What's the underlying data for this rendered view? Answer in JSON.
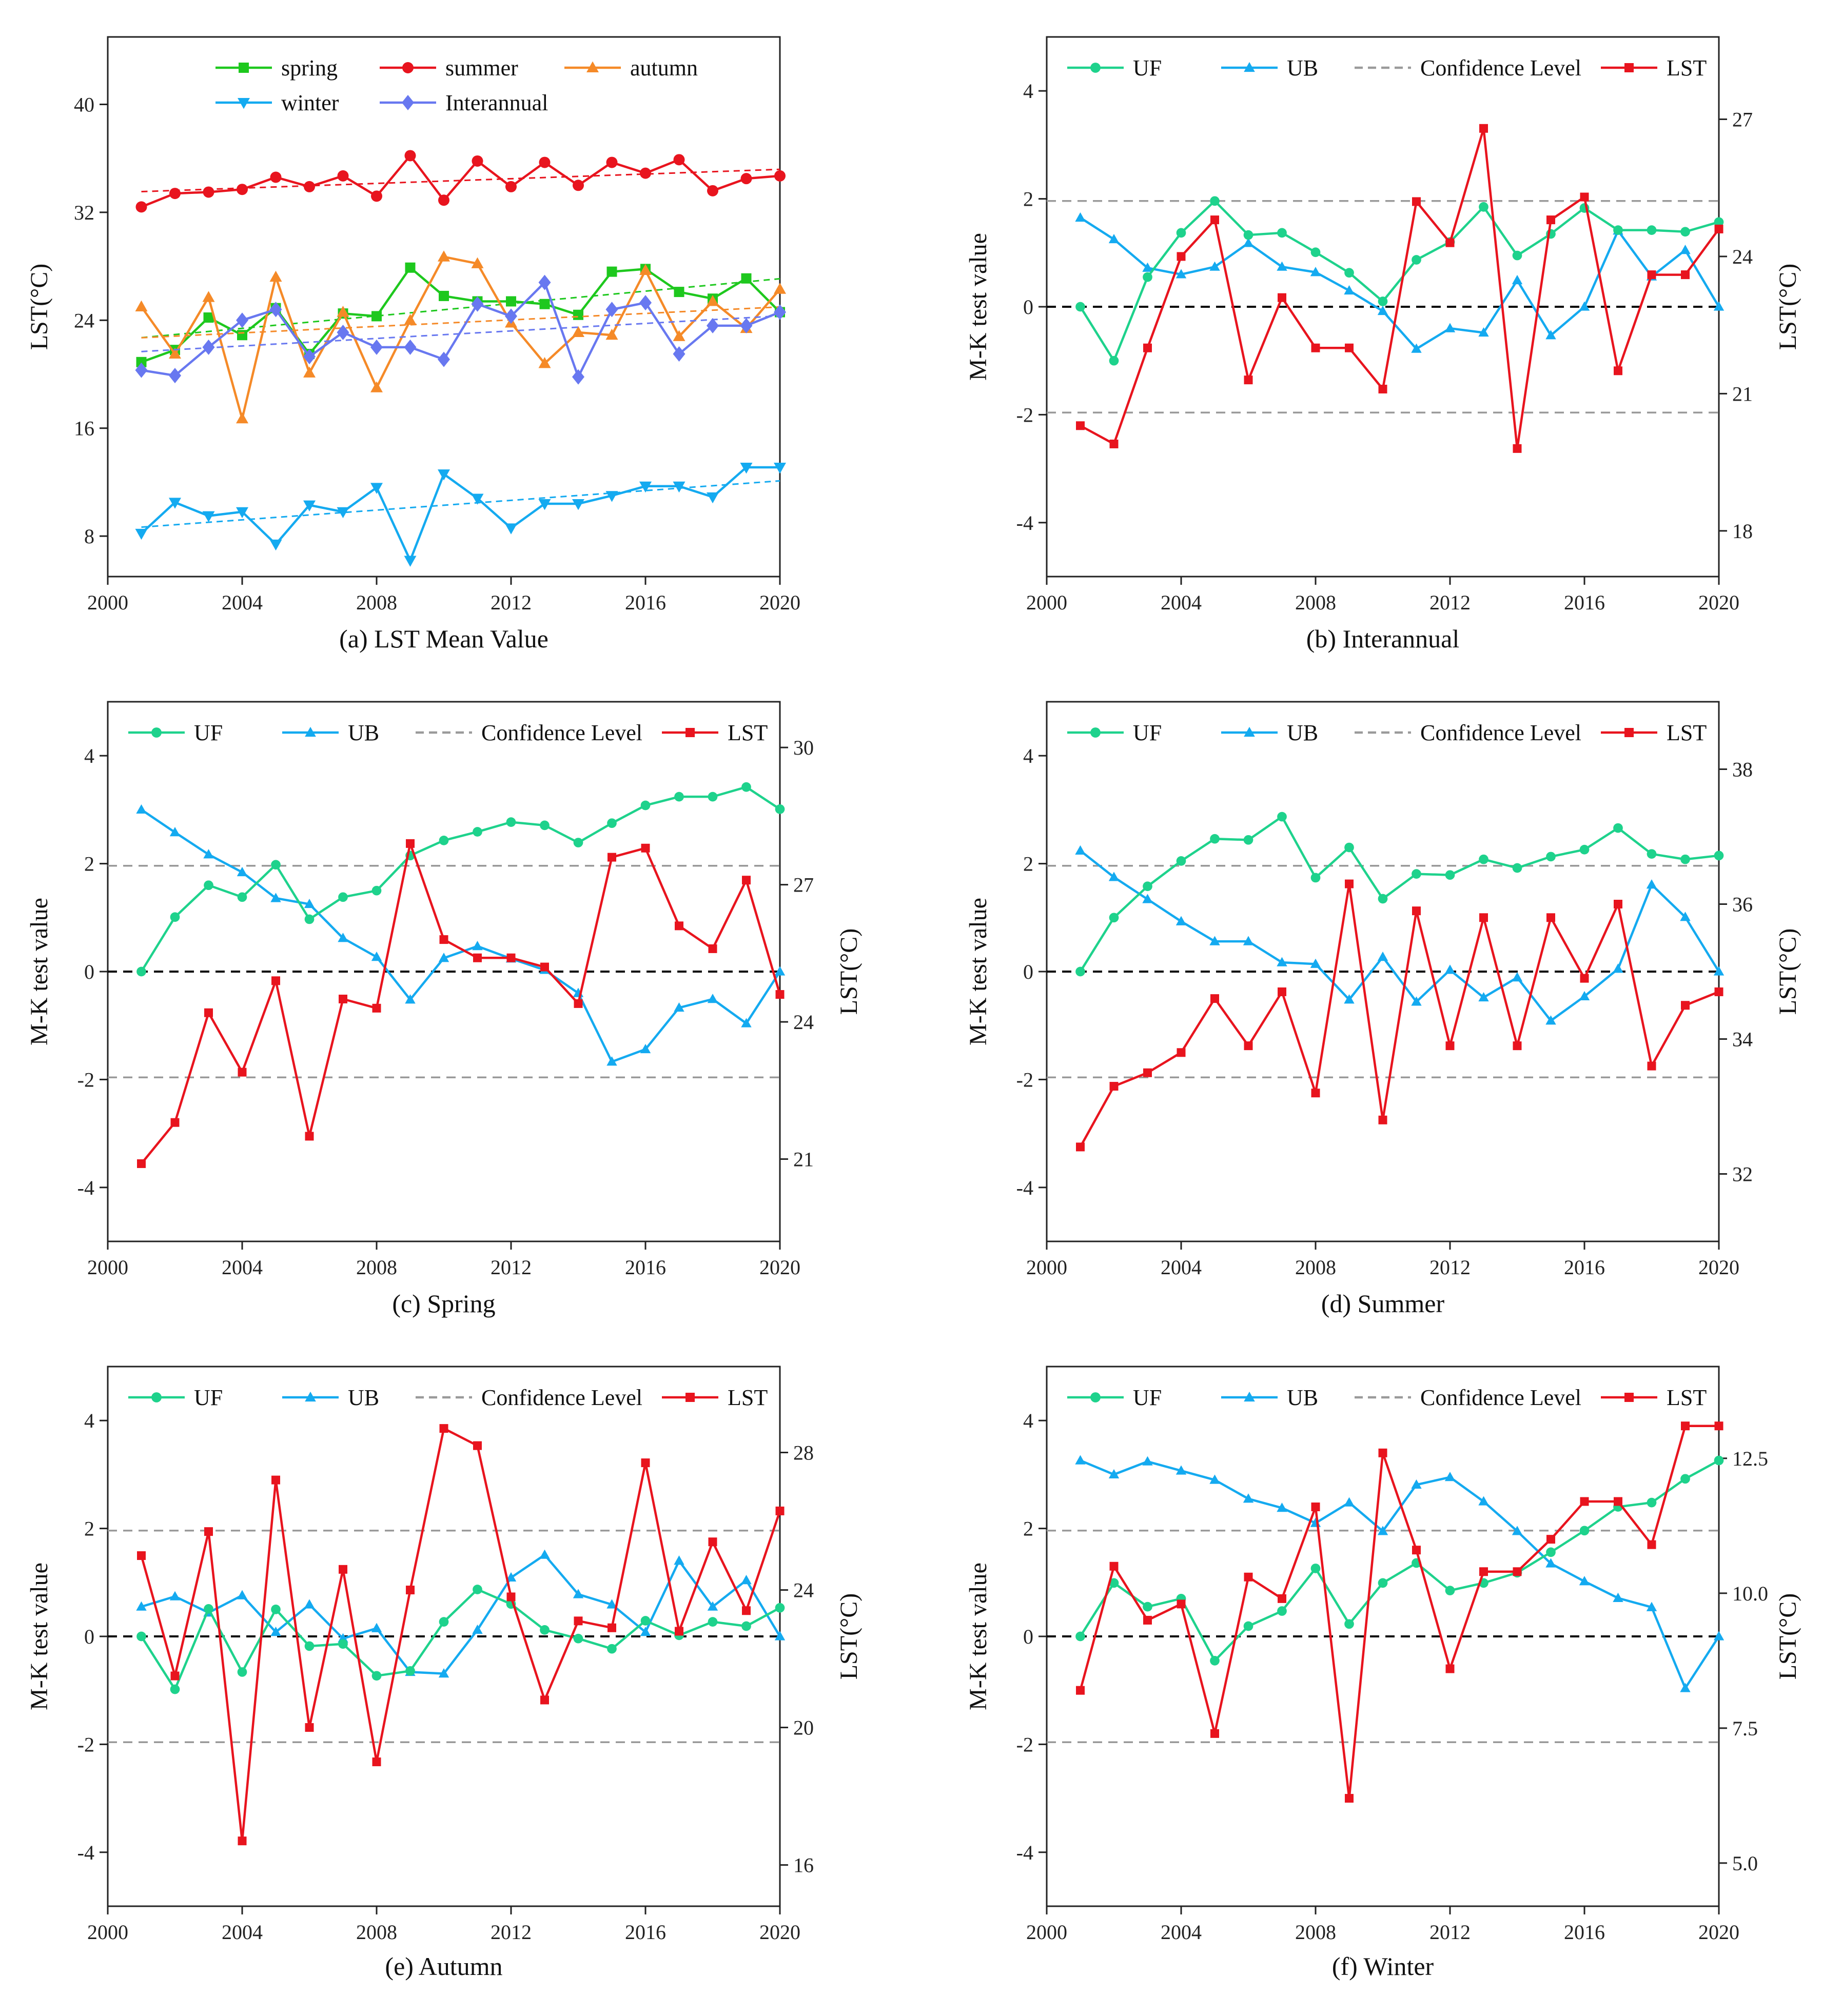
{
  "chart_data": [
    {
      "type": "line",
      "caption": "(a) LST Mean Value",
      "xlim": [
        2000,
        2020
      ],
      "xticks": [
        2000,
        2004,
        2008,
        2012,
        2016,
        2020
      ],
      "ylim": [
        5,
        45
      ],
      "yticks": [
        8,
        16,
        24,
        32,
        40
      ],
      "ylabel": "LST(°C)",
      "x": [
        2001,
        2002,
        2003,
        2004,
        2005,
        2006,
        2007,
        2008,
        2009,
        2010,
        2011,
        2012,
        2013,
        2014,
        2015,
        2016,
        2017,
        2018,
        2019,
        2020
      ],
      "legend_rows": [
        [
          "spring",
          "summer",
          "autumn"
        ],
        [
          "winter",
          "Interannual"
        ]
      ],
      "series": [
        {
          "name": "spring",
          "color": "#1ec81e",
          "marker": "square",
          "values": [
            20.9,
            21.8,
            24.2,
            22.9,
            24.9,
            21.5,
            24.5,
            24.3,
            27.9,
            25.8,
            25.4,
            25.4,
            25.2,
            24.4,
            27.6,
            27.8,
            26.1,
            25.6,
            27.1,
            24.6
          ]
        },
        {
          "name": "summer",
          "color": "#e8141e",
          "marker": "circle",
          "values": [
            32.4,
            33.4,
            33.5,
            33.7,
            34.6,
            33.9,
            34.7,
            33.2,
            36.2,
            32.9,
            35.8,
            33.9,
            35.7,
            34.0,
            35.7,
            34.9,
            35.9,
            33.6,
            34.5,
            34.7
          ]
        },
        {
          "name": "autumn",
          "color": "#f58a28",
          "marker": "triangle-up",
          "values": [
            25.0,
            21.5,
            25.7,
            16.7,
            27.2,
            20.1,
            24.6,
            19.0,
            24.0,
            28.7,
            28.2,
            23.8,
            20.8,
            23.1,
            22.9,
            27.7,
            22.8,
            25.4,
            23.4,
            26.3
          ]
        },
        {
          "name": "winter",
          "color": "#14aaf0",
          "marker": "triangle-down",
          "values": [
            8.2,
            10.5,
            9.5,
            9.8,
            7.4,
            10.3,
            9.8,
            11.6,
            6.2,
            12.6,
            10.8,
            8.6,
            10.4,
            10.4,
            11.0,
            11.7,
            11.7,
            10.9,
            13.1,
            13.1
          ]
        },
        {
          "name": "Interannual",
          "color": "#6878f0",
          "marker": "diamond",
          "values": [
            20.3,
            19.9,
            22.0,
            24.0,
            24.8,
            21.3,
            23.1,
            22.0,
            22.0,
            21.1,
            25.2,
            24.3,
            26.8,
            19.8,
            24.8,
            25.3,
            21.5,
            23.6,
            23.6,
            24.6
          ]
        }
      ],
      "trendlines": true
    },
    {
      "type": "line",
      "caption": "(b) Interannual",
      "xlim": [
        2000,
        2020
      ],
      "xticks": [
        2000,
        2004,
        2008,
        2012,
        2016,
        2020
      ],
      "ylim": [
        -5,
        5
      ],
      "yticks": [
        -4,
        -2,
        0,
        2,
        4
      ],
      "ylabel": "M-K test value",
      "y2lim": [
        17.0,
        28.8
      ],
      "y2ticks": [
        "18",
        "21",
        "24",
        "27"
      ],
      "y2ticks_values": [
        18,
        21,
        24,
        27
      ],
      "y2label": "LST(°C)",
      "confidence": [
        -1.96,
        1.96
      ],
      "x": [
        2001,
        2002,
        2003,
        2004,
        2005,
        2006,
        2007,
        2008,
        2009,
        2010,
        2011,
        2012,
        2013,
        2014,
        2015,
        2016,
        2017,
        2018,
        2019,
        2020
      ],
      "UF": [
        0,
        -1.0,
        0.55,
        1.37,
        1.96,
        1.33,
        1.37,
        1.01,
        0.63,
        0.1,
        0.87,
        1.2,
        1.85,
        0.95,
        1.35,
        1.83,
        1.42,
        1.42,
        1.39,
        1.57
      ],
      "UB": [
        1.65,
        1.25,
        0.72,
        0.6,
        0.74,
        1.18,
        0.74,
        0.64,
        0.3,
        -0.08,
        -0.78,
        -0.4,
        -0.48,
        0.49,
        -0.53,
        0.0,
        1.41,
        0.56,
        1.05,
        0.0
      ],
      "LST": [
        20.3,
        19.9,
        22.0,
        24.0,
        24.8,
        21.3,
        23.1,
        22.0,
        22.0,
        21.1,
        25.2,
        24.3,
        26.8,
        19.8,
        24.8,
        25.3,
        21.5,
        23.6,
        23.6,
        24.6
      ],
      "legend": [
        "UF",
        "UB",
        "Confidence Level",
        "LST"
      ]
    },
    {
      "type": "line",
      "caption": "(c) Spring",
      "xlim": [
        2000,
        2020
      ],
      "xticks": [
        2000,
        2004,
        2008,
        2012,
        2016,
        2020
      ],
      "ylim": [
        -5,
        5
      ],
      "yticks": [
        -4,
        -2,
        0,
        2,
        4
      ],
      "ylabel": "M-K test value",
      "y2lim": [
        19.2,
        31.0
      ],
      "y2ticks": [
        "21",
        "24",
        "27",
        "30"
      ],
      "y2ticks_values": [
        21,
        24,
        27,
        30
      ],
      "y2label": "LST(°C)",
      "confidence": [
        -1.96,
        1.96
      ],
      "x": [
        2001,
        2002,
        2003,
        2004,
        2005,
        2006,
        2007,
        2008,
        2009,
        2010,
        2011,
        2012,
        2013,
        2014,
        2015,
        2016,
        2017,
        2018,
        2019,
        2020
      ],
      "UF": [
        0,
        1.01,
        1.6,
        1.38,
        1.98,
        0.97,
        1.38,
        1.5,
        2.15,
        2.43,
        2.59,
        2.77,
        2.71,
        2.39,
        2.75,
        3.08,
        3.24,
        3.24,
        3.42,
        3.01
      ],
      "UB": [
        3.0,
        2.58,
        2.17,
        1.84,
        1.36,
        1.25,
        0.62,
        0.27,
        -0.52,
        0.25,
        0.47,
        0.24,
        0.03,
        -0.4,
        -1.67,
        -1.44,
        -0.67,
        -0.51,
        -0.96,
        0.0
      ],
      "LST": [
        20.9,
        21.8,
        24.2,
        22.9,
        24.9,
        21.5,
        24.5,
        24.3,
        27.9,
        25.8,
        25.4,
        25.4,
        25.2,
        24.4,
        27.6,
        27.8,
        26.1,
        25.6,
        27.1,
        24.6
      ],
      "legend": [
        "UF",
        "UB",
        "Confidence Level",
        "LST"
      ]
    },
    {
      "type": "line",
      "caption": "(d) Summer",
      "xlim": [
        2000,
        2020
      ],
      "xticks": [
        2000,
        2004,
        2008,
        2012,
        2016,
        2020
      ],
      "ylim": [
        -5,
        5
      ],
      "yticks": [
        -4,
        -2,
        0,
        2,
        4
      ],
      "ylabel": "M-K test value",
      "y2lim": [
        31.0,
        39.0
      ],
      "y2ticks": [
        "32",
        "34",
        "36",
        "38"
      ],
      "y2ticks_values": [
        32,
        34,
        36,
        38
      ],
      "y2label": "LST(°C)",
      "confidence": [
        -1.96,
        1.96
      ],
      "x": [
        2001,
        2002,
        2003,
        2004,
        2005,
        2006,
        2007,
        2008,
        2009,
        2010,
        2011,
        2012,
        2013,
        2014,
        2015,
        2016,
        2017,
        2018,
        2019,
        2020
      ],
      "UF": [
        0,
        1.0,
        1.58,
        2.05,
        2.46,
        2.44,
        2.87,
        1.74,
        2.3,
        1.35,
        1.81,
        1.79,
        2.08,
        1.92,
        2.13,
        2.26,
        2.66,
        2.18,
        2.08,
        2.15
      ],
      "UB": [
        2.24,
        1.75,
        1.34,
        0.93,
        0.56,
        0.56,
        0.17,
        0.14,
        -0.52,
        0.27,
        -0.56,
        0.03,
        -0.48,
        -0.11,
        -0.91,
        -0.46,
        0.05,
        1.61,
        1.01,
        0.0
      ],
      "LST": [
        32.4,
        33.3,
        33.5,
        33.8,
        34.6,
        33.9,
        34.7,
        33.2,
        36.3,
        32.8,
        35.9,
        33.9,
        35.8,
        33.9,
        35.8,
        34.9,
        36.0,
        33.6,
        34.5,
        34.7
      ],
      "legend": [
        "UF",
        "UB",
        "Confidence Level",
        "LST"
      ]
    },
    {
      "type": "line",
      "caption": "(e) Autumn",
      "xlim": [
        2000,
        2020
      ],
      "xticks": [
        2000,
        2004,
        2008,
        2012,
        2016,
        2020
      ],
      "ylim": [
        -5,
        5
      ],
      "yticks": [
        -4,
        -2,
        0,
        2,
        4
      ],
      "ylabel": "M-K test value",
      "y2lim": [
        14.8,
        30.5
      ],
      "y2ticks": [
        "16",
        "20",
        "24",
        "28"
      ],
      "y2ticks_values": [
        16,
        20,
        24,
        28
      ],
      "y2label": "LST(°C)",
      "confidence": [
        -1.96,
        1.96
      ],
      "x": [
        2001,
        2002,
        2003,
        2004,
        2005,
        2006,
        2007,
        2008,
        2009,
        2010,
        2011,
        2012,
        2013,
        2014,
        2015,
        2016,
        2017,
        2018,
        2019,
        2020
      ],
      "UF": [
        0,
        -0.98,
        0.51,
        -0.66,
        0.5,
        -0.18,
        -0.14,
        -0.73,
        -0.64,
        0.27,
        0.87,
        0.6,
        0.12,
        -0.04,
        -0.23,
        0.29,
        0.02,
        0.27,
        0.19,
        0.53
      ],
      "UB": [
        0.55,
        0.74,
        0.44,
        0.76,
        0.08,
        0.59,
        -0.04,
        0.15,
        -0.66,
        -0.69,
        0.12,
        1.09,
        1.51,
        0.78,
        0.59,
        0.08,
        1.4,
        0.55,
        1.04,
        0.0
      ],
      "LST": [
        25.0,
        21.5,
        25.7,
        16.7,
        27.2,
        20.0,
        24.6,
        19.0,
        24.0,
        28.7,
        28.2,
        23.8,
        20.8,
        23.1,
        22.9,
        27.7,
        22.8,
        25.4,
        23.4,
        26.3
      ],
      "legend": [
        "UF",
        "UB",
        "Confidence Level",
        "LST"
      ]
    },
    {
      "type": "line",
      "caption": "(f) Winter",
      "xlim": [
        2000,
        2020
      ],
      "xticks": [
        2000,
        2004,
        2008,
        2012,
        2016,
        2020
      ],
      "ylim": [
        -5,
        5
      ],
      "yticks": [
        -4,
        -2,
        0,
        2,
        4
      ],
      "ylabel": "M-K test value",
      "y2lim": [
        4.2,
        14.2
      ],
      "y2ticks": [
        "5.0",
        "7.5",
        "10.0",
        "12.5"
      ],
      "y2ticks_values": [
        5.0,
        7.5,
        10.0,
        12.5
      ],
      "y2label": "LST(°C)",
      "confidence": [
        -1.96,
        1.96
      ],
      "x": [
        2001,
        2002,
        2003,
        2004,
        2005,
        2006,
        2007,
        2008,
        2009,
        2010,
        2011,
        2012,
        2013,
        2014,
        2015,
        2016,
        2017,
        2018,
        2019,
        2020
      ],
      "UF": [
        0,
        0.99,
        0.55,
        0.7,
        -0.45,
        0.19,
        0.47,
        1.26,
        0.23,
        0.99,
        1.36,
        0.85,
        0.99,
        1.18,
        1.56,
        1.96,
        2.4,
        2.48,
        2.92,
        3.26
      ],
      "UB": [
        3.26,
        3.0,
        3.24,
        3.07,
        2.9,
        2.55,
        2.38,
        2.1,
        2.48,
        1.95,
        2.81,
        2.95,
        2.5,
        1.95,
        1.35,
        1.02,
        0.71,
        0.54,
        -0.96,
        0.0
      ],
      "LST": [
        8.2,
        10.5,
        9.5,
        9.8,
        7.4,
        10.3,
        9.9,
        11.6,
        6.2,
        12.6,
        10.8,
        8.6,
        10.4,
        10.4,
        11.0,
        11.7,
        11.7,
        10.9,
        13.1,
        13.1
      ],
      "legend": [
        "UF",
        "UB",
        "Confidence Level",
        "LST"
      ]
    }
  ],
  "colors": {
    "UF": "#1ed28c",
    "UB": "#14aaf0",
    "LST": "#e8141e",
    "confidence": "#9a9a9a",
    "zero": "#000000"
  }
}
